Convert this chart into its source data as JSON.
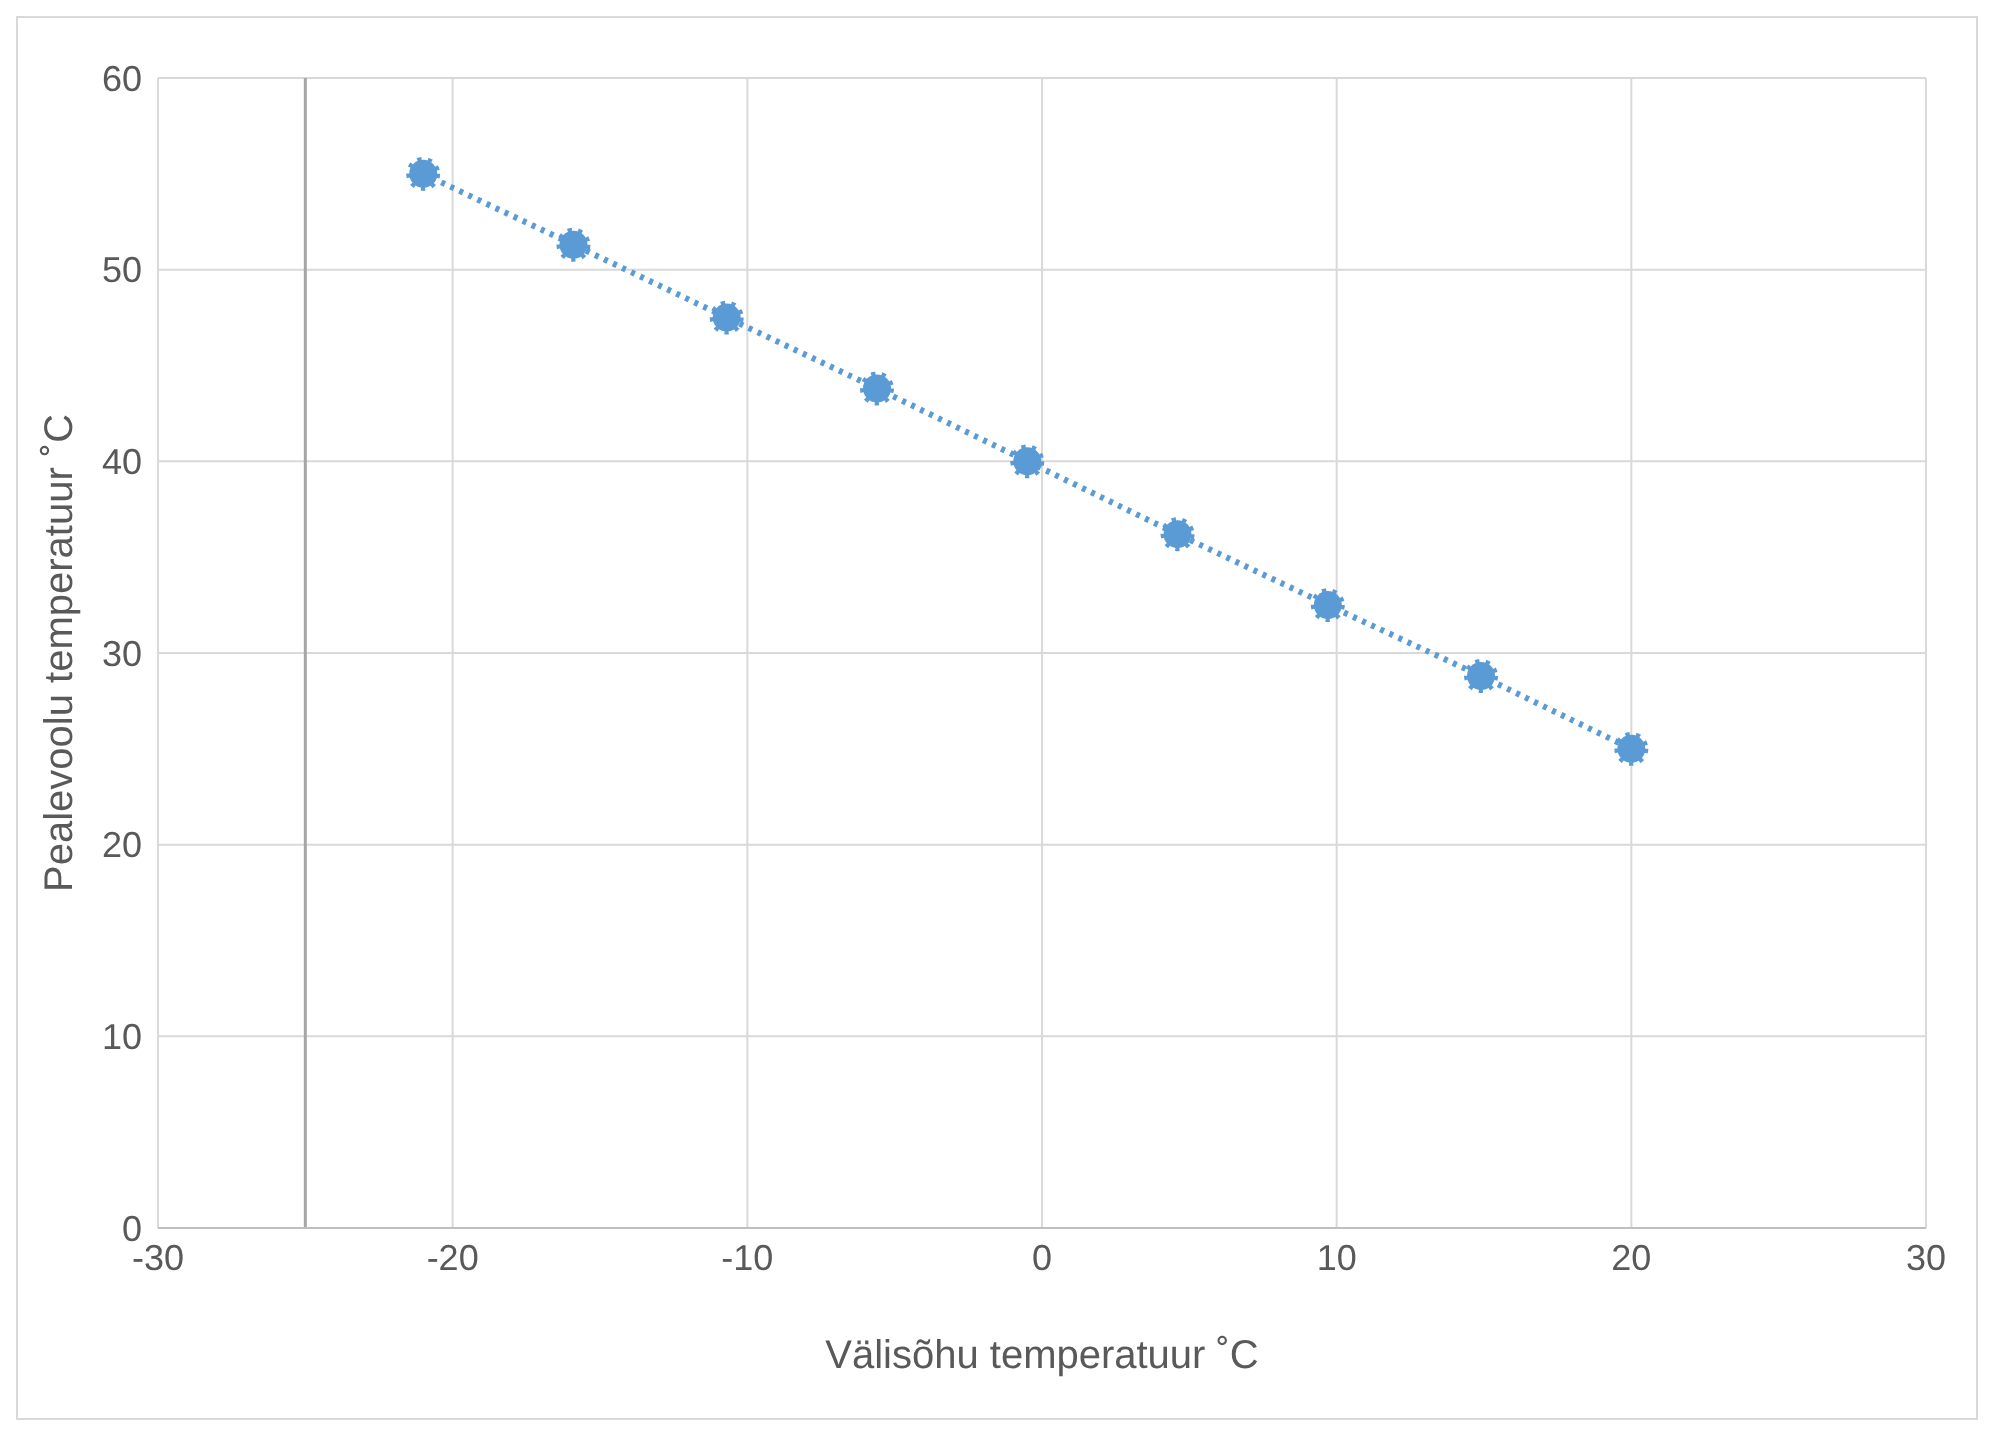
{
  "chart_data": {
    "type": "line",
    "xlabel": "Välisõhu temperatuur ˚C",
    "ylabel": "Pealevoolu temperatuur ˚C",
    "x": [
      -21,
      -15.9,
      -10.7,
      -5.6,
      -0.5,
      4.6,
      9.7,
      14.9,
      20
    ],
    "series": [
      {
        "color": "#5b9bd5",
        "values": [
          55,
          51.3,
          47.5,
          43.8,
          40,
          36.2,
          32.5,
          28.8,
          25
        ]
      }
    ],
    "xlim": [
      -30,
      30
    ],
    "xticks": [
      -30,
      -20,
      -10,
      0,
      10,
      20,
      30
    ],
    "ylim": [
      0,
      60
    ],
    "yticks": [
      0,
      10,
      20,
      30,
      40,
      50,
      60
    ],
    "ref_lines": [
      {
        "axis": "x",
        "value": -25,
        "color": "#a6a6a6"
      }
    ],
    "grid": true,
    "legend": false,
    "marker": "circle",
    "line_style": "dotted"
  }
}
